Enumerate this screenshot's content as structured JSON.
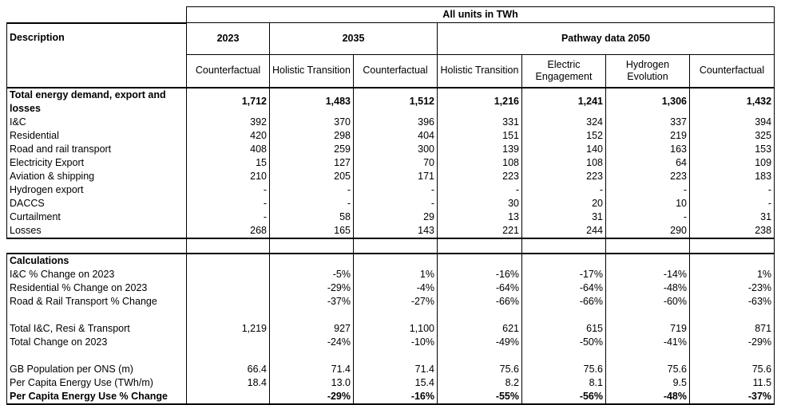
{
  "header": {
    "units": "All units in TWh",
    "description": "Description",
    "y2023": "2023",
    "y2035": "2035",
    "y2050": "Pathway data 2050",
    "cols": [
      "Counterfactual",
      "Holistic Transition",
      "Counterfactual",
      "Holistic Transition",
      "Electric Engagement",
      "Hydrogen Evolution",
      "Counterfactual"
    ]
  },
  "demand": {
    "total_label": "Total energy demand, export and losses",
    "total_values": [
      "1,712",
      "1,483",
      "1,512",
      "1,216",
      "1,241",
      "1,306",
      "1,432"
    ],
    "rows": [
      {
        "label": "I&C",
        "values": [
          "392",
          "370",
          "396",
          "331",
          "324",
          "337",
          "394"
        ]
      },
      {
        "label": "Residential",
        "values": [
          "420",
          "298",
          "404",
          "151",
          "152",
          "219",
          "325"
        ]
      },
      {
        "label": "Road and rail transport",
        "values": [
          "408",
          "259",
          "300",
          "139",
          "140",
          "163",
          "153"
        ]
      },
      {
        "label": "Electricity Export",
        "values": [
          "15",
          "127",
          "70",
          "108",
          "108",
          "64",
          "109"
        ]
      },
      {
        "label": "Aviation & shipping",
        "values": [
          "210",
          "205",
          "171",
          "223",
          "223",
          "223",
          "183"
        ]
      },
      {
        "label": "Hydrogen export",
        "values": [
          "-",
          "-",
          "-",
          "-",
          "-",
          "-",
          "-"
        ]
      },
      {
        "label": "DACCS",
        "values": [
          "-",
          "-",
          "-",
          "30",
          "20",
          "10",
          "-"
        ]
      },
      {
        "label": "Curtailment",
        "values": [
          "-",
          "58",
          "29",
          "13",
          "31",
          "-",
          "31"
        ]
      },
      {
        "label": "Losses",
        "values": [
          "268",
          "165",
          "143",
          "221",
          "244",
          "290",
          "238"
        ]
      }
    ]
  },
  "calc": {
    "title": "Calculations",
    "rows": [
      {
        "label": "I&C % Change on 2023",
        "values": [
          "",
          "-5%",
          "1%",
          "-16%",
          "-17%",
          "-14%",
          "1%"
        ]
      },
      {
        "label": "Residential % Change on 2023",
        "values": [
          "",
          "-29%",
          "-4%",
          "-64%",
          "-64%",
          "-48%",
          "-23%"
        ]
      },
      {
        "label": "Road & Rail Transport % Change",
        "values": [
          "",
          "-37%",
          "-27%",
          "-66%",
          "-66%",
          "-60%",
          "-63%"
        ]
      },
      {
        "label": "",
        "values": [
          "",
          "",
          "",
          "",
          "",
          "",
          ""
        ]
      },
      {
        "label": "Total I&C, Resi & Transport",
        "values": [
          "1,219",
          "927",
          "1,100",
          "621",
          "615",
          "719",
          "871"
        ]
      },
      {
        "label": "Total Change on 2023",
        "values": [
          "",
          "-24%",
          "-10%",
          "-49%",
          "-50%",
          "-41%",
          "-29%"
        ]
      },
      {
        "label": "",
        "values": [
          "",
          "",
          "",
          "",
          "",
          "",
          ""
        ]
      },
      {
        "label": "GB Population per ONS (m)",
        "values": [
          "66.4",
          "71.4",
          "71.4",
          "75.6",
          "75.6",
          "75.6",
          "75.6"
        ]
      },
      {
        "label": "Per Capita Energy Use (TWh/m)",
        "values": [
          "18.4",
          "13.0",
          "15.4",
          "8.2",
          "8.1",
          "9.5",
          "11.5"
        ]
      }
    ],
    "final_label": "Per Capita Energy Use % Change",
    "final_values": [
      "",
      "-29%",
      "-16%",
      "-55%",
      "-56%",
      "-48%",
      "-37%"
    ]
  }
}
